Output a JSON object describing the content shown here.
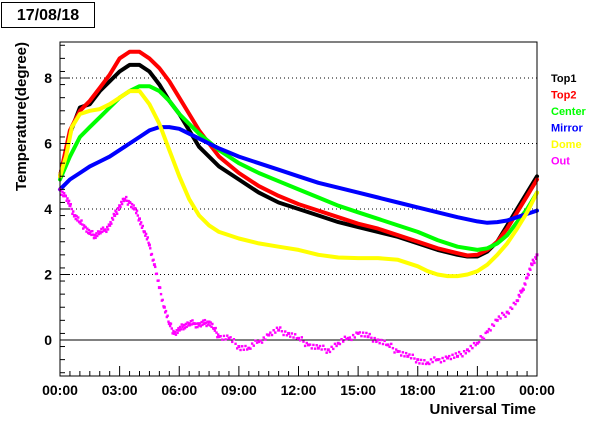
{
  "header": {
    "date": "17/08/18"
  },
  "chart_data": {
    "type": "line",
    "title": "",
    "xlabel": "Universal Time",
    "ylabel": "Temperature(degree)",
    "xlim_hours": [
      0,
      24
    ],
    "ylim": [
      -1.1,
      9.1
    ],
    "grid": "horizontal dotted at y ticks; solid line at y=0",
    "legend_placement": "right",
    "x_tick_labels": [
      "00:00",
      "03:00",
      "06:00",
      "09:00",
      "12:00",
      "15:00",
      "18:00",
      "21:00",
      "00:00"
    ],
    "x_tick_hours": [
      0,
      3,
      6,
      9,
      12,
      15,
      18,
      21,
      24
    ],
    "y_tick_values": [
      0,
      2,
      4,
      6,
      8
    ],
    "y_tick_labels": [
      "0",
      "2",
      "4",
      "6",
      "8"
    ],
    "series": [
      {
        "name": "Top1",
        "color": "#000000",
        "kind": "line",
        "x": [
          0,
          0.5,
          1,
          1.5,
          2,
          2.5,
          3,
          3.5,
          4,
          4.5,
          5,
          5.5,
          6,
          6.5,
          7,
          8,
          9,
          10,
          11,
          12,
          13,
          14,
          15,
          16,
          17,
          18,
          19,
          20,
          20.5,
          21,
          21.5,
          22,
          22.5,
          23,
          23.5,
          24
        ],
        "y": [
          5.0,
          6.3,
          7.1,
          7.2,
          7.6,
          7.9,
          8.2,
          8.4,
          8.4,
          8.2,
          7.8,
          7.3,
          6.9,
          6.4,
          5.9,
          5.3,
          4.9,
          4.5,
          4.2,
          4.0,
          3.8,
          3.6,
          3.45,
          3.3,
          3.15,
          2.95,
          2.75,
          2.6,
          2.55,
          2.55,
          2.7,
          3.0,
          3.5,
          4.0,
          4.5,
          5.0
        ]
      },
      {
        "name": "Top2",
        "color": "#ff0000",
        "kind": "line",
        "x": [
          0,
          0.5,
          1,
          1.5,
          2,
          2.5,
          3,
          3.5,
          4,
          4.5,
          5,
          5.5,
          6,
          6.5,
          7,
          8,
          9,
          10,
          11,
          12,
          13,
          14,
          15,
          16,
          17,
          18,
          19,
          20,
          20.5,
          21,
          21.5,
          22,
          22.5,
          23,
          23.5,
          24
        ],
        "y": [
          5.0,
          6.4,
          7.0,
          7.3,
          7.7,
          8.1,
          8.6,
          8.8,
          8.8,
          8.6,
          8.3,
          7.9,
          7.4,
          6.9,
          6.4,
          5.6,
          5.1,
          4.7,
          4.4,
          4.15,
          3.95,
          3.75,
          3.55,
          3.4,
          3.2,
          3.0,
          2.8,
          2.65,
          2.58,
          2.6,
          2.75,
          3.0,
          3.4,
          3.9,
          4.4,
          4.9
        ]
      },
      {
        "name": "Center",
        "color": "#00ff00",
        "kind": "line",
        "x": [
          0,
          0.5,
          1,
          1.5,
          2,
          2.5,
          3,
          3.5,
          4,
          4.5,
          5,
          5.5,
          6,
          6.5,
          7,
          8,
          9,
          10,
          11,
          12,
          13,
          14,
          15,
          16,
          17,
          18,
          19,
          20,
          21,
          21.5,
          22,
          22.5,
          23,
          23.5,
          24
        ],
        "y": [
          4.9,
          5.6,
          6.2,
          6.5,
          6.8,
          7.1,
          7.4,
          7.6,
          7.75,
          7.75,
          7.6,
          7.3,
          6.9,
          6.6,
          6.3,
          5.8,
          5.4,
          5.1,
          4.85,
          4.6,
          4.35,
          4.1,
          3.9,
          3.7,
          3.5,
          3.3,
          3.05,
          2.85,
          2.75,
          2.8,
          2.95,
          3.2,
          3.6,
          4.0,
          4.5
        ]
      },
      {
        "name": "Mirror",
        "color": "#0000ff",
        "kind": "line",
        "x": [
          0,
          0.5,
          1,
          1.5,
          2,
          2.5,
          3,
          3.5,
          4,
          4.5,
          5,
          5.5,
          6,
          6.5,
          7,
          8,
          9,
          10,
          11,
          12,
          13,
          14,
          15,
          16,
          17,
          18,
          19,
          20,
          21,
          21.5,
          22,
          22.5,
          23,
          23.5,
          24
        ],
        "y": [
          4.6,
          4.9,
          5.1,
          5.3,
          5.45,
          5.6,
          5.8,
          6.0,
          6.2,
          6.4,
          6.5,
          6.5,
          6.45,
          6.3,
          6.15,
          5.85,
          5.6,
          5.4,
          5.2,
          5.0,
          4.8,
          4.65,
          4.5,
          4.35,
          4.2,
          4.05,
          3.9,
          3.75,
          3.62,
          3.58,
          3.6,
          3.65,
          3.75,
          3.85,
          3.95
        ]
      },
      {
        "name": "Dome",
        "color": "#ffff00",
        "kind": "line",
        "x": [
          0,
          0.3,
          0.6,
          1,
          1.5,
          2,
          2.5,
          3,
          3.5,
          4,
          4.5,
          5,
          5.5,
          6,
          6.5,
          7,
          7.5,
          8,
          9,
          10,
          11,
          12,
          13,
          14,
          15,
          16,
          17,
          18,
          18.5,
          19,
          19.5,
          20,
          20.5,
          21,
          21.5,
          22,
          22.5,
          23,
          23.5,
          24
        ],
        "y": [
          5.0,
          5.6,
          6.5,
          6.9,
          7.0,
          7.05,
          7.2,
          7.4,
          7.6,
          7.6,
          7.2,
          6.6,
          5.8,
          5.0,
          4.3,
          3.8,
          3.5,
          3.3,
          3.1,
          2.95,
          2.85,
          2.75,
          2.6,
          2.52,
          2.5,
          2.5,
          2.45,
          2.25,
          2.1,
          2.0,
          1.95,
          1.95,
          2.0,
          2.1,
          2.3,
          2.6,
          2.95,
          3.4,
          3.9,
          4.5
        ]
      },
      {
        "name": "Out",
        "color": "#ff00ff",
        "kind": "scatter",
        "x": [
          0,
          0.25,
          0.5,
          0.75,
          1,
          1.25,
          1.5,
          1.75,
          2,
          2.25,
          2.5,
          2.75,
          3,
          3.25,
          3.5,
          3.75,
          4,
          4.25,
          4.5,
          4.75,
          5,
          5.25,
          5.5,
          5.75,
          6,
          6.25,
          6.5,
          6.75,
          7,
          7.25,
          7.5,
          7.75,
          8,
          8.5,
          9,
          9.5,
          10,
          10.5,
          11,
          11.5,
          12,
          12.5,
          13,
          13.5,
          14,
          14.5,
          15,
          15.5,
          16,
          16.5,
          17,
          17.5,
          18,
          18.5,
          19,
          19.5,
          20,
          20.5,
          21,
          21.5,
          22,
          22.5,
          23,
          23.25,
          23.5,
          23.75,
          24
        ],
        "y": [
          4.6,
          4.4,
          4.1,
          3.8,
          3.6,
          3.45,
          3.25,
          3.2,
          3.3,
          3.35,
          3.5,
          3.8,
          4.1,
          4.3,
          4.2,
          4.0,
          3.7,
          3.3,
          2.9,
          2.3,
          1.6,
          1.0,
          0.5,
          0.2,
          0.3,
          0.45,
          0.5,
          0.5,
          0.45,
          0.5,
          0.55,
          0.35,
          0.1,
          0.05,
          -0.2,
          -0.25,
          -0.05,
          0.15,
          0.3,
          0.2,
          0.05,
          -0.15,
          -0.25,
          -0.3,
          -0.1,
          0.05,
          0.2,
          0.1,
          0.0,
          -0.15,
          -0.35,
          -0.5,
          -0.6,
          -0.7,
          -0.6,
          -0.55,
          -0.5,
          -0.3,
          -0.1,
          0.25,
          0.6,
          0.85,
          1.2,
          1.5,
          1.9,
          2.3,
          2.6
        ]
      }
    ]
  }
}
